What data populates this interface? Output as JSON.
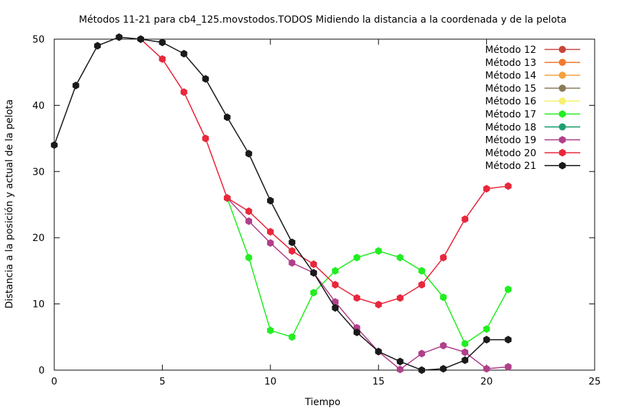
{
  "chart_data": {
    "type": "line",
    "title": "Métodos 11-21 para cb4_125.movstodos.TODOS Midiendo la distancia a la coordenada y de la pelota",
    "xlabel": "Tiempo",
    "ylabel": "Distancia a la posición y actual de la pelota",
    "xlim": [
      0,
      25
    ],
    "ylim": [
      0,
      50
    ],
    "xticks": [
      "0",
      "5",
      "10",
      "15",
      "20",
      "25"
    ],
    "yticks": [
      "0",
      "10",
      "20",
      "30",
      "40",
      "50"
    ],
    "grid": false,
    "legend_position": "top-right",
    "series": [
      {
        "name": "Método 12",
        "color": "#c8453a",
        "marker": "circle",
        "x": [],
        "y": []
      },
      {
        "name": "Método 13",
        "color": "#f07a30",
        "marker": "circle",
        "x": [],
        "y": []
      },
      {
        "name": "Método 14",
        "color": "#f5a040",
        "marker": "circle",
        "x": [],
        "y": []
      },
      {
        "name": "Método 15",
        "color": "#8a7a5a",
        "marker": "circle",
        "x": [],
        "y": []
      },
      {
        "name": "Método 16",
        "color": "#f8f070",
        "marker": "circle",
        "x": [],
        "y": []
      },
      {
        "name": "Método 17",
        "color": "#22ee22",
        "marker": "hexagon",
        "x": [
          8,
          9,
          10,
          11,
          12,
          13,
          14,
          15,
          16,
          17,
          18,
          19,
          20,
          21
        ],
        "y": [
          26,
          17,
          6,
          5,
          11.7,
          15,
          17,
          18,
          17,
          15,
          11,
          4,
          6.2,
          12.2
        ]
      },
      {
        "name": "Método 18",
        "color": "#20a070",
        "marker": "circle",
        "x": [],
        "y": []
      },
      {
        "name": "Método 19",
        "color": "#b0408a",
        "marker": "hexagon",
        "x": [
          8,
          9,
          10,
          11,
          12,
          13,
          14,
          15,
          16,
          17,
          18,
          19,
          20,
          21
        ],
        "y": [
          26,
          22.5,
          19.2,
          16.2,
          14.7,
          10.3,
          6.4,
          2.8,
          0.1,
          2.5,
          3.7,
          2.7,
          0.2,
          0.5
        ]
      },
      {
        "name": "Método 20",
        "color": "#e8283c",
        "marker": "hexagon",
        "x": [
          4,
          5,
          6,
          7,
          8,
          9,
          10,
          11,
          12,
          13,
          14,
          15,
          16,
          17,
          18,
          19,
          20,
          21
        ],
        "y": [
          50,
          47,
          42,
          35,
          26,
          24,
          20.9,
          18,
          16,
          12.9,
          10.9,
          9.9,
          10.9,
          12.9,
          17,
          22.8,
          27.4,
          27.8
        ]
      },
      {
        "name": "Método 21",
        "color": "#1a1a1a",
        "marker": "hexagon",
        "x": [
          0,
          1,
          2,
          3,
          4,
          5,
          6,
          7,
          8,
          9,
          10,
          11,
          12,
          13,
          14,
          15,
          16,
          17,
          18,
          19,
          20,
          21
        ],
        "y": [
          34,
          43,
          49,
          50.3,
          50,
          49.5,
          47.8,
          44,
          38.2,
          32.7,
          25.6,
          19.3,
          14.7,
          9.4,
          5.7,
          2.8,
          1.3,
          0,
          0.2,
          1.5,
          4.6,
          4.6
        ]
      }
    ]
  }
}
